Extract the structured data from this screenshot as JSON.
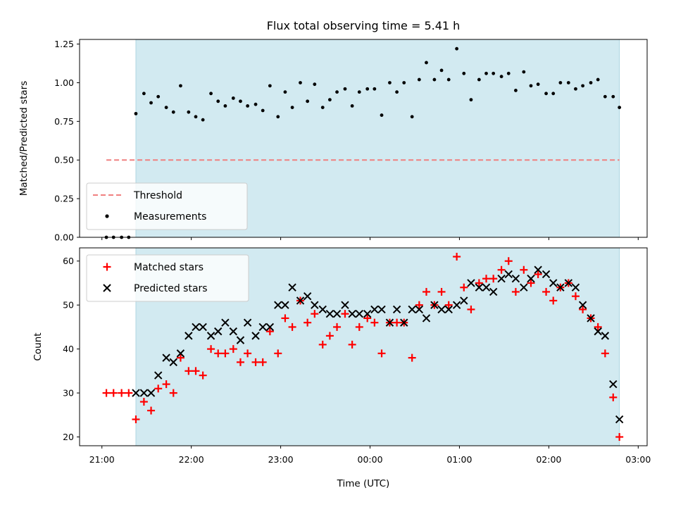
{
  "chart_data": {
    "type": "scatter",
    "title": "Flux total observing time = 5.41 h",
    "xlabel": "Time (UTC)",
    "x_tick_labels": [
      "21:00",
      "22:00",
      "23:00",
      "00:00",
      "01:00",
      "02:00",
      "03:00"
    ],
    "x_tick_hours": [
      0,
      1,
      2,
      3,
      4,
      5,
      6
    ],
    "x_range_hours": [
      -0.25,
      6.1
    ],
    "shaded_span_hours": [
      0.38,
      5.79
    ],
    "colors": {
      "shade": "#add8e6",
      "matched": "#ff0000",
      "predicted": "#000000",
      "threshold": "#f08080",
      "measurements": "#000000"
    },
    "panels": [
      {
        "ylabel": "Matched/Predicted stars",
        "ylim": [
          0,
          1.28
        ],
        "yticks": [
          "0.00",
          "0.25",
          "0.50",
          "0.75",
          "1.00",
          "1.25"
        ],
        "legend": {
          "position": "lower-left",
          "entries": [
            "Threshold",
            "Measurements"
          ]
        },
        "threshold": {
          "name": "Threshold",
          "value": 0.5,
          "x_hours": [
            0.05,
            5.79
          ]
        },
        "series": [
          {
            "name": "Measurements",
            "x_hours": [
              0.05,
              0.13,
              0.22,
              0.3,
              0.38,
              0.47,
              0.55,
              0.63,
              0.72,
              0.8,
              0.88,
              0.97,
              1.05,
              1.13,
              1.22,
              1.3,
              1.38,
              1.47,
              1.55,
              1.63,
              1.72,
              1.8,
              1.88,
              1.97,
              2.05,
              2.13,
              2.22,
              2.3,
              2.38,
              2.47,
              2.55,
              2.63,
              2.72,
              2.8,
              2.88,
              2.97,
              3.05,
              3.13,
              3.22,
              3.3,
              3.38,
              3.47,
              3.55,
              3.63,
              3.72,
              3.8,
              3.88,
              3.97,
              4.05,
              4.13,
              4.22,
              4.3,
              4.38,
              4.47,
              4.55,
              4.63,
              4.72,
              4.8,
              4.88,
              4.97,
              5.05,
              5.13,
              5.22,
              5.3,
              5.38,
              5.47,
              5.55,
              5.63,
              5.72,
              5.79
            ],
            "values": [
              0,
              0,
              0,
              0,
              0.8,
              0.93,
              0.87,
              0.91,
              0.84,
              0.81,
              0.98,
              0.81,
              0.78,
              0.76,
              0.93,
              0.88,
              0.85,
              0.9,
              0.88,
              0.85,
              0.86,
              0.82,
              0.98,
              0.78,
              0.94,
              0.84,
              1.0,
              0.88,
              0.99,
              0.84,
              0.89,
              0.94,
              0.96,
              0.85,
              0.94,
              0.96,
              0.96,
              0.79,
              1.0,
              0.94,
              1.0,
              0.78,
              1.02,
              1.13,
              1.02,
              1.08,
              1.02,
              1.22,
              1.06,
              0.89,
              1.02,
              1.06,
              1.06,
              1.04,
              1.06,
              0.95,
              1.07,
              0.98,
              0.99,
              0.93,
              0.93,
              1.0,
              1.0,
              0.96,
              0.98,
              1.0,
              1.02,
              0.91,
              0.91,
              0.84
            ]
          }
        ]
      },
      {
        "ylabel": "Count",
        "ylim": [
          18,
          63
        ],
        "yticks": [
          "20",
          "30",
          "40",
          "50",
          "60"
        ],
        "legend": {
          "position": "upper-left",
          "entries": [
            "Matched stars",
            "Predicted stars"
          ]
        },
        "series": [
          {
            "name": "Matched stars",
            "marker": "+",
            "x_hours": [
              0.05,
              0.13,
              0.22,
              0.3,
              0.38,
              0.47,
              0.55,
              0.63,
              0.72,
              0.8,
              0.88,
              0.97,
              1.05,
              1.13,
              1.22,
              1.3,
              1.38,
              1.47,
              1.55,
              1.63,
              1.72,
              1.8,
              1.88,
              1.97,
              2.05,
              2.13,
              2.22,
              2.3,
              2.38,
              2.47,
              2.55,
              2.63,
              2.72,
              2.8,
              2.88,
              2.97,
              3.05,
              3.13,
              3.22,
              3.3,
              3.38,
              3.47,
              3.55,
              3.63,
              3.72,
              3.8,
              3.88,
              3.97,
              4.05,
              4.13,
              4.22,
              4.3,
              4.38,
              4.47,
              4.55,
              4.63,
              4.72,
              4.8,
              4.88,
              4.97,
              5.05,
              5.13,
              5.22,
              5.3,
              5.38,
              5.47,
              5.55,
              5.63,
              5.72,
              5.79
            ],
            "values": [
              30,
              30,
              30,
              30,
              24,
              28,
              26,
              31,
              32,
              30,
              38,
              35,
              35,
              34,
              40,
              39,
              39,
              40,
              37,
              39,
              37,
              37,
              44,
              39,
              47,
              45,
              51,
              46,
              48,
              41,
              43,
              45,
              48,
              41,
              45,
              47,
              46,
              39,
              46,
              46,
              46,
              38,
              50,
              53,
              50,
              53,
              50,
              61,
              54,
              49,
              55,
              56,
              56,
              58,
              60,
              53,
              58,
              55,
              57,
              53,
              51,
              54,
              55,
              52,
              49,
              47,
              45,
              39,
              29,
              20
            ]
          },
          {
            "name": "Predicted stars",
            "marker": "x",
            "x_hours": [
              0.38,
              0.47,
              0.55,
              0.63,
              0.72,
              0.8,
              0.88,
              0.97,
              1.05,
              1.13,
              1.22,
              1.3,
              1.38,
              1.47,
              1.55,
              1.63,
              1.72,
              1.8,
              1.88,
              1.97,
              2.05,
              2.13,
              2.22,
              2.3,
              2.38,
              2.47,
              2.55,
              2.63,
              2.72,
              2.8,
              2.88,
              2.97,
              3.05,
              3.13,
              3.22,
              3.3,
              3.38,
              3.47,
              3.55,
              3.63,
              3.72,
              3.8,
              3.88,
              3.97,
              4.05,
              4.13,
              4.22,
              4.3,
              4.38,
              4.47,
              4.55,
              4.63,
              4.72,
              4.8,
              4.88,
              4.97,
              5.05,
              5.13,
              5.22,
              5.3,
              5.38,
              5.47,
              5.55,
              5.63,
              5.72,
              5.79
            ],
            "values": [
              30,
              30,
              30,
              34,
              38,
              37,
              39,
              43,
              45,
              45,
              43,
              44,
              46,
              44,
              42,
              46,
              43,
              45,
              45,
              50,
              50,
              54,
              51,
              52,
              50,
              49,
              48,
              48,
              50,
              48,
              48,
              48,
              49,
              49,
              46,
              49,
              46,
              49,
              49,
              47,
              50,
              49,
              49,
              50,
              51,
              55,
              54,
              54,
              53,
              56,
              57,
              56,
              54,
              56,
              58,
              57,
              55,
              54,
              55,
              54,
              50,
              47,
              44,
              43,
              32,
              24
            ]
          }
        ]
      }
    ]
  }
}
